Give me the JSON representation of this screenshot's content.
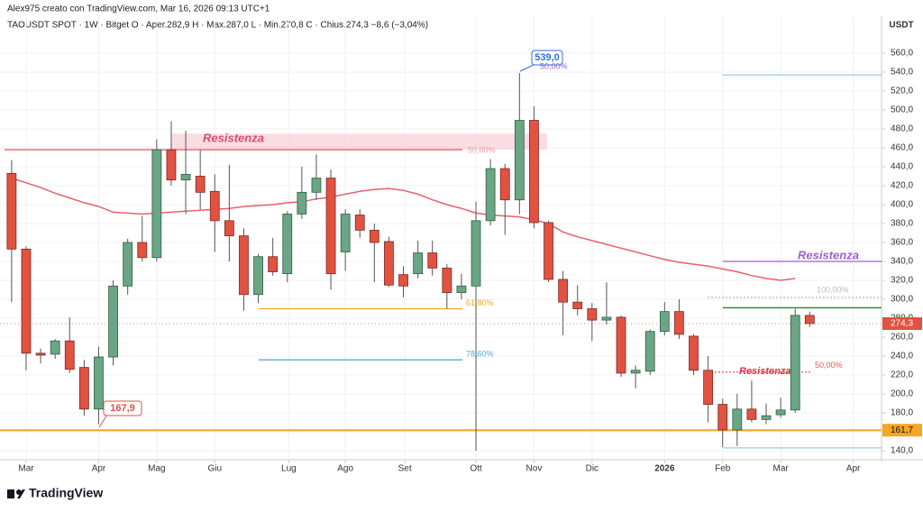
{
  "header": {
    "credit": "Alex975 creato con TradingView.com, Mar 16, 2026 09:13 UTC+1",
    "legend": "TAOUSDT SPOT · 1W · Bitget  O · Aper.282,9  H · Max.287,0  L · Min.270,8  C · Chius.274,3  −8,6 (−3,04%)",
    "currency": "USDT"
  },
  "footer": {
    "brand": "TradingView"
  },
  "chart_data": {
    "type": "candlestick",
    "categories": [
      null,
      null,
      null,
      null,
      null,
      null,
      null,
      null,
      null,
      null,
      null,
      null,
      null,
      null,
      null,
      null,
      null,
      null,
      null,
      null,
      null,
      null,
      null,
      null,
      null,
      null,
      null,
      null,
      null,
      null,
      null,
      null,
      null,
      null,
      null,
      null,
      null,
      null,
      null,
      null,
      null,
      null,
      null,
      null,
      null,
      null,
      null,
      null,
      null,
      null,
      null,
      null,
      null,
      null,
      null,
      null
    ],
    "candles": {
      "open": [
        433,
        353,
        243,
        242,
        256,
        228,
        184,
        239,
        314,
        360,
        344,
        458,
        426,
        430,
        414,
        383,
        367,
        305,
        345,
        327,
        390,
        413,
        428,
        350,
        389,
        373,
        361,
        326,
        327,
        349,
        333,
        307,
        314,
        383,
        438,
        405,
        489,
        381,
        321,
        297,
        290,
        278,
        281,
        222,
        224,
        266,
        287,
        261,
        225,
        189,
        162,
        184,
        173,
        178,
        183,
        282.9
      ],
      "high": [
        447,
        356,
        248,
        258,
        281,
        236,
        250,
        320,
        364,
        388,
        469,
        488,
        478,
        458,
        432,
        442,
        375,
        348,
        365,
        393,
        440,
        453,
        437,
        395,
        395,
        380,
        366,
        335,
        362,
        362,
        337,
        327,
        403,
        448,
        443,
        539,
        504,
        383,
        330,
        315,
        296,
        318,
        283,
        230,
        268,
        297,
        300,
        263,
        240,
        195,
        200,
        214,
        190,
        196,
        290,
        287.0
      ],
      "low": [
        297,
        225,
        232,
        237,
        222,
        177,
        168,
        230,
        305,
        340,
        340,
        420,
        390,
        395,
        350,
        340,
        288,
        296,
        325,
        318,
        385,
        405,
        310,
        330,
        365,
        318,
        313,
        302,
        322,
        325,
        290,
        300,
        140,
        378,
        368,
        390,
        375,
        318,
        262,
        283,
        256,
        273,
        218,
        206,
        220,
        262,
        258,
        220,
        170,
        144,
        145,
        170,
        168,
        175,
        180,
        270.8
      ],
      "close": [
        353,
        243,
        241,
        256,
        226,
        184,
        239,
        314,
        360,
        344,
        458,
        426,
        432,
        413,
        383,
        367,
        305,
        345,
        329,
        390,
        413,
        428,
        327,
        390,
        373,
        360,
        315,
        314,
        349,
        333,
        307,
        314,
        383,
        438,
        405,
        489,
        381,
        321,
        297,
        290,
        278,
        281,
        222,
        225,
        266,
        287,
        263,
        225,
        189,
        162,
        184,
        173,
        177,
        183,
        283,
        274.3
      ],
      "up_color": "#6aa584",
      "down_color": "#e15241"
    },
    "ma": {
      "color": "#e8606a",
      "values": [
        428,
        423,
        418,
        412,
        407,
        402,
        398,
        392,
        391,
        390,
        391,
        392,
        393,
        394,
        395,
        396,
        398,
        399,
        400,
        402,
        403,
        406,
        408,
        411,
        414,
        416,
        417,
        415,
        411,
        405,
        400,
        396,
        391,
        389,
        388,
        387,
        384,
        380,
        371,
        366,
        362,
        358,
        354,
        350,
        346,
        342,
        339,
        337,
        335,
        332,
        329,
        325,
        322,
        320,
        322,
        null
      ]
    },
    "xlim": [
      -0.8,
      59.95
    ],
    "ylim": [
      130.5,
      599
    ],
    "xticks": [
      {
        "value": 1,
        "label": "Mar"
      },
      {
        "value": 6,
        "label": "Apr"
      },
      {
        "value": 10,
        "label": "Mag"
      },
      {
        "value": 14,
        "label": "Giu"
      },
      {
        "value": 19.1,
        "label": "Lug"
      },
      {
        "value": 23,
        "label": "Ago"
      },
      {
        "value": 27.1,
        "label": "Set"
      },
      {
        "value": 32,
        "label": "Ott"
      },
      {
        "value": 36,
        "label": "Nov"
      },
      {
        "value": 40,
        "label": "Dic"
      },
      {
        "value": 45,
        "label": "2026"
      },
      {
        "value": 49,
        "label": "Feb"
      },
      {
        "value": 53,
        "label": "Mar"
      },
      {
        "value": 58,
        "label": "Apr"
      }
    ],
    "yticks": [
      {
        "value": 140,
        "label": "140,0"
      },
      {
        "value": 160,
        "label": "160,0"
      },
      {
        "value": 180,
        "label": "180,0"
      },
      {
        "value": 200,
        "label": "200,0"
      },
      {
        "value": 220,
        "label": "220,0"
      },
      {
        "value": 240,
        "label": "240,0"
      },
      {
        "value": 260,
        "label": "260,0"
      },
      {
        "value": 280,
        "label": "280,0"
      },
      {
        "value": 300,
        "label": "300,0"
      },
      {
        "value": 320,
        "label": "320,0"
      },
      {
        "value": 340,
        "label": "340,0"
      },
      {
        "value": 360,
        "label": "360,0"
      },
      {
        "value": 380,
        "label": "380,0"
      },
      {
        "value": 400,
        "label": "400,0"
      },
      {
        "value": 420,
        "label": "420,0"
      },
      {
        "value": 440,
        "label": "440,0"
      },
      {
        "value": 460,
        "label": "460,0"
      },
      {
        "value": 480,
        "label": "480,0"
      },
      {
        "value": 500,
        "label": "500,0"
      },
      {
        "value": 520,
        "label": "520,0"
      },
      {
        "value": 540,
        "label": "540,0"
      },
      {
        "value": 560,
        "label": "560,0"
      }
    ],
    "grid": true,
    "zone": {
      "low": 458,
      "high": 475,
      "color": "#f9d3dc",
      "label": "Resistenza",
      "tag": "50,00%"
    },
    "levels": [
      {
        "value": 458,
        "color": "#e8606a"
      },
      {
        "value": 161.7,
        "color": "#f5a623",
        "label": "161,7"
      },
      {
        "value": 290,
        "color": "#f5a623",
        "label": "61,80%"
      },
      {
        "value": 236,
        "color": "#5aa9d6",
        "label": "78,60%"
      },
      {
        "value": 537,
        "color": "#8fd0e6"
      },
      {
        "value": 340,
        "color": "#9c5fc9",
        "label": "Resistenza"
      },
      {
        "value": 291,
        "color": "#2e7d32"
      },
      {
        "value": 302,
        "color": "#bbbbbb",
        "label": "100,00%"
      },
      {
        "value": 223,
        "color": "#e05555",
        "label": "50,00%",
        "tag": "Resistenza"
      },
      {
        "value": 143,
        "color": "#8fd0e6"
      }
    ],
    "callouts": [
      {
        "value": 539,
        "label": "539,0",
        "color": "#2f6fdc",
        "tag": "50,00%"
      },
      {
        "value": 167.9,
        "label": "167,9",
        "color": "#e15241"
      }
    ],
    "last_price": {
      "value": 274.3,
      "label": "274,3",
      "color": "#e15241"
    }
  }
}
